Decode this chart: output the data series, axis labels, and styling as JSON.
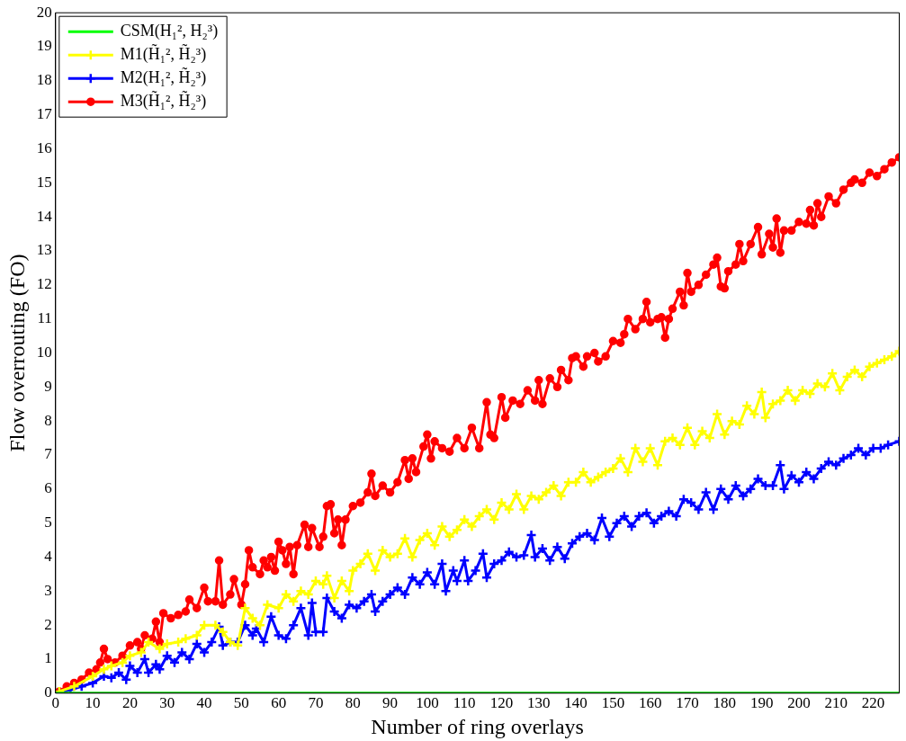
{
  "chart_data": {
    "type": "line",
    "xlabel": "Number of ring overlays",
    "ylabel": "Flow overrouting (FO)",
    "xlim": [
      0,
      227
    ],
    "xticks": [
      0,
      10,
      20,
      30,
      40,
      50,
      60,
      70,
      80,
      90,
      100,
      110,
      120,
      130,
      140,
      150,
      160,
      170,
      180,
      190,
      200,
      210,
      220
    ],
    "ylim": [
      0,
      20
    ],
    "yticks": [
      0,
      1,
      2,
      3,
      4,
      5,
      6,
      7,
      8,
      9,
      10,
      11,
      12,
      13,
      14,
      15,
      16,
      17,
      18,
      19,
      20
    ],
    "grid": false,
    "legend": "top left",
    "line_style": "solid",
    "series": [
      {
        "name": "CSM(H₁², H₂³)",
        "color": "#00ff00",
        "marker": "none",
        "x": [
          0,
          227
        ],
        "values": [
          0,
          0
        ]
      },
      {
        "name": "M1(H̃₁², H̃₂³)",
        "color": "#ffff00",
        "marker": "cross",
        "x": [
          1,
          5,
          10,
          13,
          15,
          18,
          20,
          23,
          25,
          28,
          30,
          33,
          35,
          38,
          40,
          43,
          45,
          47,
          49,
          51,
          53,
          55,
          57,
          60,
          62,
          64,
          66,
          68,
          70,
          72,
          73,
          75,
          77,
          79,
          80,
          82,
          84,
          86,
          88,
          90,
          92,
          94,
          96,
          98,
          100,
          102,
          104,
          106,
          108,
          110,
          112,
          114,
          116,
          118,
          120,
          122,
          124,
          126,
          128,
          130,
          132,
          134,
          136,
          138,
          140,
          142,
          144,
          146,
          148,
          150,
          152,
          154,
          156,
          158,
          160,
          162,
          164,
          166,
          168,
          170,
          172,
          174,
          176,
          178,
          180,
          182,
          184,
          186,
          188,
          190,
          191,
          193,
          195,
          197,
          199,
          201,
          203,
          205,
          207,
          209,
          211,
          213,
          215,
          217,
          219,
          221,
          223,
          225,
          227
        ],
        "values": [
          0.05,
          0.2,
          0.5,
          0.7,
          0.8,
          0.9,
          1.1,
          1.2,
          1.5,
          1.3,
          1.45,
          1.5,
          1.6,
          1.7,
          2.0,
          2.0,
          1.8,
          1.5,
          1.4,
          2.5,
          2.2,
          2.0,
          2.6,
          2.5,
          2.9,
          2.7,
          3.0,
          2.9,
          3.3,
          3.2,
          3.45,
          2.8,
          3.3,
          3.0,
          3.6,
          3.8,
          4.1,
          3.6,
          4.2,
          4.0,
          4.1,
          4.55,
          4.0,
          4.5,
          4.7,
          4.35,
          4.9,
          4.6,
          4.8,
          5.1,
          4.9,
          5.2,
          5.4,
          5.1,
          5.6,
          5.4,
          5.85,
          5.4,
          5.8,
          5.7,
          5.9,
          6.1,
          5.8,
          6.2,
          6.2,
          6.5,
          6.2,
          6.35,
          6.5,
          6.6,
          6.9,
          6.5,
          7.2,
          6.8,
          7.2,
          6.7,
          7.4,
          7.5,
          7.3,
          7.8,
          7.3,
          7.7,
          7.5,
          8.2,
          7.6,
          8.0,
          7.9,
          8.45,
          8.2,
          8.85,
          8.1,
          8.5,
          8.6,
          8.9,
          8.6,
          8.9,
          8.8,
          9.1,
          9.0,
          9.4,
          8.9,
          9.3,
          9.5,
          9.3,
          9.6,
          9.7,
          9.8,
          9.9,
          10.05
        ]
      },
      {
        "name": "M2(H₁², H̃₂³)",
        "color": "#0000ff",
        "marker": "cross",
        "x": [
          1,
          4,
          7,
          10,
          13,
          15,
          17,
          19,
          20,
          22,
          24,
          25,
          27,
          28,
          30,
          32,
          34,
          36,
          38,
          40,
          42,
          44,
          45,
          47,
          49,
          51,
          53,
          54,
          56,
          58,
          60,
          62,
          64,
          66,
          68,
          69,
          70,
          72,
          73,
          75,
          77,
          79,
          81,
          83,
          85,
          86,
          88,
          90,
          92,
          94,
          96,
          98,
          100,
          102,
          104,
          105,
          107,
          108,
          110,
          111,
          113,
          115,
          116,
          118,
          120,
          122,
          124,
          126,
          128,
          129,
          131,
          133,
          135,
          137,
          139,
          141,
          143,
          145,
          147,
          149,
          151,
          153,
          155,
          157,
          159,
          161,
          163,
          165,
          167,
          169,
          171,
          173,
          175,
          177,
          179,
          181,
          183,
          185,
          187,
          189,
          191,
          193,
          195,
          196,
          198,
          200,
          202,
          204,
          206,
          208,
          210,
          212,
          214,
          216,
          218,
          220,
          222,
          224,
          227
        ],
        "values": [
          0.02,
          0.1,
          0.2,
          0.3,
          0.5,
          0.45,
          0.6,
          0.4,
          0.8,
          0.6,
          1.0,
          0.6,
          0.85,
          0.7,
          1.1,
          0.9,
          1.2,
          1.0,
          1.45,
          1.2,
          1.5,
          1.95,
          1.4,
          1.5,
          1.5,
          2.0,
          1.7,
          1.9,
          1.5,
          2.25,
          1.7,
          1.6,
          2.0,
          2.5,
          1.7,
          2.65,
          1.8,
          1.8,
          2.8,
          2.4,
          2.2,
          2.6,
          2.5,
          2.7,
          2.9,
          2.4,
          2.7,
          2.9,
          3.1,
          2.9,
          3.4,
          3.2,
          3.55,
          3.2,
          3.8,
          3.0,
          3.6,
          3.3,
          3.9,
          3.3,
          3.6,
          4.1,
          3.4,
          3.8,
          3.9,
          4.15,
          4.0,
          4.05,
          4.65,
          4.0,
          4.25,
          3.9,
          4.3,
          3.95,
          4.4,
          4.6,
          4.7,
          4.5,
          5.15,
          4.6,
          5.0,
          5.2,
          4.9,
          5.2,
          5.3,
          5.0,
          5.2,
          5.35,
          5.2,
          5.7,
          5.6,
          5.4,
          5.9,
          5.4,
          6.0,
          5.7,
          6.1,
          5.8,
          6.0,
          6.3,
          6.1,
          6.1,
          6.7,
          6.0,
          6.4,
          6.2,
          6.5,
          6.3,
          6.6,
          6.8,
          6.7,
          6.9,
          7.0,
          7.2,
          7.0,
          7.2,
          7.2,
          7.3,
          7.4
        ]
      },
      {
        "name": "M3(H̃₁², H̃₂³)",
        "color": "#ff0000",
        "marker": "circle",
        "x": [
          1,
          3,
          5,
          7,
          9,
          11,
          12,
          13,
          14,
          16,
          18,
          20,
          22,
          23,
          24,
          26,
          27,
          28,
          29,
          31,
          33,
          35,
          36,
          38,
          40,
          41,
          43,
          44,
          45,
          47,
          48,
          50,
          51,
          52,
          53,
          55,
          56,
          57,
          58,
          59,
          60,
          61,
          62,
          63,
          64,
          65,
          67,
          68,
          69,
          71,
          72,
          73,
          74,
          75,
          76,
          77,
          78,
          80,
          82,
          84,
          85,
          86,
          88,
          90,
          92,
          94,
          95,
          96,
          97,
          99,
          100,
          101,
          102,
          104,
          106,
          108,
          110,
          112,
          114,
          116,
          117,
          118,
          120,
          121,
          123,
          125,
          127,
          129,
          130,
          131,
          133,
          135,
          136,
          138,
          139,
          140,
          142,
          143,
          145,
          146,
          148,
          150,
          152,
          153,
          154,
          156,
          158,
          159,
          160,
          162,
          163,
          164,
          165,
          166,
          168,
          169,
          170,
          171,
          173,
          175,
          177,
          178,
          179,
          180,
          181,
          183,
          184,
          185,
          187,
          189,
          190,
          192,
          193,
          194,
          195,
          196,
          198,
          200,
          202,
          203,
          204,
          205,
          206,
          208,
          210,
          212,
          214,
          215,
          217,
          219,
          221,
          223,
          225,
          227
        ],
        "values": [
          0.05,
          0.2,
          0.3,
          0.4,
          0.6,
          0.7,
          0.9,
          1.3,
          1.0,
          0.9,
          1.1,
          1.4,
          1.5,
          1.3,
          1.7,
          1.6,
          2.1,
          1.5,
          2.35,
          2.2,
          2.3,
          2.4,
          2.75,
          2.5,
          3.1,
          2.7,
          2.7,
          3.9,
          2.6,
          2.9,
          3.35,
          2.6,
          3.2,
          4.2,
          3.7,
          3.5,
          3.9,
          3.7,
          4.0,
          3.6,
          4.45,
          4.2,
          3.8,
          4.3,
          3.5,
          4.35,
          4.95,
          4.3,
          4.85,
          4.3,
          4.6,
          5.5,
          5.55,
          4.7,
          5.1,
          4.35,
          5.1,
          5.5,
          5.6,
          5.9,
          6.45,
          5.8,
          6.1,
          5.9,
          6.2,
          6.85,
          6.3,
          6.9,
          6.5,
          7.25,
          7.6,
          6.9,
          7.4,
          7.2,
          7.1,
          7.5,
          7.2,
          7.8,
          7.2,
          8.55,
          7.6,
          7.5,
          8.7,
          8.1,
          8.6,
          8.5,
          8.9,
          8.6,
          9.2,
          8.5,
          9.25,
          9.0,
          9.5,
          9.2,
          9.85,
          9.9,
          9.6,
          9.9,
          10.0,
          9.75,
          9.9,
          10.35,
          10.3,
          10.55,
          11.0,
          10.7,
          11.0,
          11.5,
          10.9,
          11.0,
          11.05,
          10.45,
          11.0,
          11.3,
          11.8,
          11.4,
          12.35,
          11.8,
          12.0,
          12.3,
          12.6,
          12.8,
          11.95,
          11.9,
          12.4,
          12.6,
          13.2,
          12.7,
          13.2,
          13.7,
          12.9,
          13.5,
          13.1,
          13.95,
          12.95,
          13.6,
          13.6,
          13.85,
          13.8,
          14.2,
          13.75,
          14.4,
          14.0,
          14.6,
          14.4,
          14.8,
          15.0,
          15.1,
          15.0,
          15.3,
          15.2,
          15.4,
          15.6,
          15.75
        ]
      }
    ]
  }
}
